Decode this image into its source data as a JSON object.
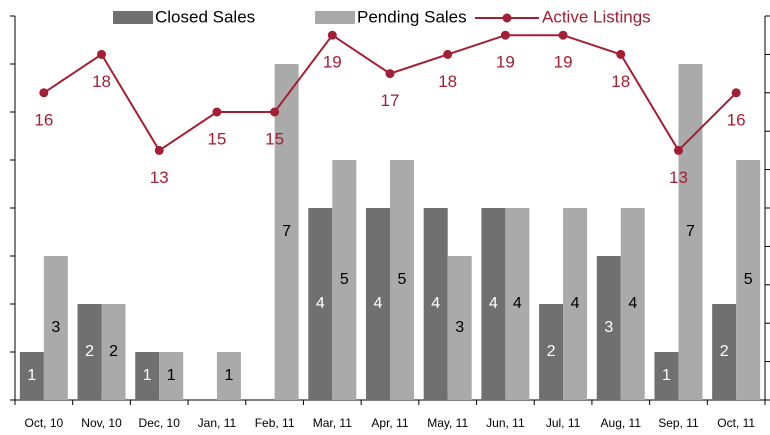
{
  "chart_data": {
    "type": "bar_line",
    "categories": [
      "Oct, 10",
      "Nov, 10",
      "Dec, 10",
      "Jan, 11",
      "Feb, 11",
      "Mar, 11",
      "Apr, 11",
      "May, 11",
      "Jun, 11",
      "Jul, 11",
      "Aug, 11",
      "Sep, 11",
      "Oct, 11"
    ],
    "series": [
      {
        "name": "Closed Sales",
        "color": "#707070",
        "type": "bar",
        "values": [
          1,
          2,
          1,
          null,
          null,
          4,
          4,
          4,
          4,
          2,
          3,
          1,
          2
        ]
      },
      {
        "name": "Pending Sales",
        "color": "#aaaaaa",
        "type": "bar",
        "values": [
          3,
          2,
          1,
          1,
          7,
          5,
          5,
          3,
          4,
          4,
          4,
          7,
          5
        ]
      },
      {
        "name": "Active Listings",
        "color": "#a31f34",
        "type": "line",
        "axis": "y2",
        "values": [
          16,
          18,
          13,
          15,
          15,
          19,
          17,
          18,
          19,
          19,
          18,
          13,
          16
        ]
      }
    ],
    "ylim": [
      0,
      8
    ],
    "yticks": [
      0,
      1,
      2,
      3,
      4,
      5,
      6,
      7,
      8
    ],
    "y2lim": [
      0,
      20
    ],
    "y2ticks": [
      0,
      2,
      4,
      6,
      8,
      10,
      12,
      14,
      16,
      18,
      20
    ]
  }
}
